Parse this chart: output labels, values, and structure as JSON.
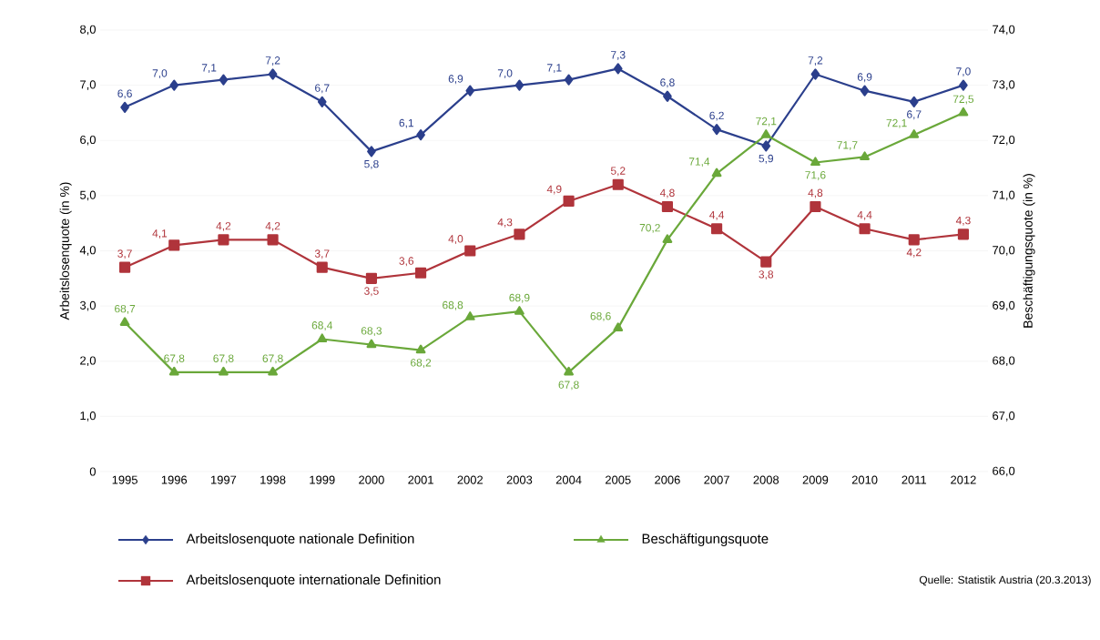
{
  "chart_data": {
    "type": "line",
    "categories": [
      "1995",
      "1996",
      "1997",
      "1998",
      "1999",
      "2000",
      "2001",
      "2002",
      "2003",
      "2004",
      "2005",
      "2006",
      "2007",
      "2008",
      "2009",
      "2010",
      "2011",
      "2012"
    ],
    "ylabel": "Arbeitslosenquote (in %)",
    "y2label": "Beschäftigungsquote (in %)",
    "ylim": [
      0,
      8
    ],
    "yticks": [
      {
        "value": 0,
        "label": "0"
      },
      {
        "value": 1,
        "label": "1,0"
      },
      {
        "value": 2,
        "label": "2,0"
      },
      {
        "value": 3,
        "label": "3,0"
      },
      {
        "value": 4,
        "label": "4,0"
      },
      {
        "value": 5,
        "label": "5,0"
      },
      {
        "value": 6,
        "label": "6,0"
      },
      {
        "value": 7,
        "label": "7,0"
      },
      {
        "value": 8,
        "label": "8,0"
      }
    ],
    "y2lim": [
      66,
      74
    ],
    "y2ticks": [
      {
        "value": 66,
        "label": "66,0"
      },
      {
        "value": 67,
        "label": "67,0"
      },
      {
        "value": 68,
        "label": "68,0"
      },
      {
        "value": 69,
        "label": "69,0"
      },
      {
        "value": 70,
        "label": "70,0"
      },
      {
        "value": 71,
        "label": "71,0"
      },
      {
        "value": 72,
        "label": "72,0"
      },
      {
        "value": 73,
        "label": "73,0"
      },
      {
        "value": 74,
        "label": "74,0"
      }
    ],
    "grid": "y",
    "legend": "bottom",
    "line_style": "solid",
    "series": [
      {
        "name": "Arbeitslosenquote nationale Definition",
        "color": "#2b3f8c",
        "marker": "diamond",
        "values": [
          6.6,
          7.0,
          7.1,
          7.2,
          6.7,
          5.8,
          6.1,
          6.9,
          7.0,
          7.1,
          7.3,
          6.8,
          6.2,
          5.9,
          7.2,
          6.9,
          6.7,
          7.0
        ],
        "value_labels": [
          "6,6",
          "7,0",
          "7,1",
          "7,2",
          "6,7",
          "5,8",
          "6,1",
          "6,9",
          "7,0",
          "7,1",
          "7,3",
          "6,8",
          "6,2",
          "5,9",
          "7,2",
          "6,9",
          "6,7",
          "7,0"
        ]
      },
      {
        "name": "Beschäftigungsquote",
        "color": "#6aa83a",
        "marker": "triangle",
        "axis": "y2",
        "values": [
          68.7,
          67.8,
          67.8,
          67.8,
          68.4,
          68.3,
          68.2,
          68.8,
          68.9,
          67.8,
          68.6,
          70.2,
          71.4,
          72.1,
          71.6,
          71.7,
          72.1,
          72.5
        ],
        "value_labels": [
          "68,7",
          "67,8",
          "67,8",
          "67,8",
          "68,4",
          "68,3",
          "68,2",
          "68,8",
          "68,9",
          "67,8",
          "68,6",
          "70,2",
          "71,4",
          "72,1",
          "71,6",
          "71,7",
          "72,1",
          "72,5"
        ]
      },
      {
        "name": "Arbeitslosenquote internationale Definition",
        "color": "#b0343b",
        "marker": "square",
        "values": [
          3.7,
          4.1,
          4.2,
          4.2,
          3.7,
          3.5,
          3.6,
          4.0,
          4.3,
          4.9,
          5.2,
          4.8,
          4.4,
          3.8,
          4.8,
          4.4,
          4.2,
          4.3
        ],
        "value_labels": [
          "3,7",
          "4,1",
          "4,2",
          "4,2",
          "3,7",
          "3,5",
          "3,6",
          "4,0",
          "4,3",
          "4,9",
          "5,2",
          "4,8",
          "4,4",
          "3,8",
          "4,8",
          "4,4",
          "4,2",
          "4,3"
        ]
      }
    ],
    "annotations": [
      "Quelle: Statistik Austria (20.3.2013)"
    ]
  }
}
